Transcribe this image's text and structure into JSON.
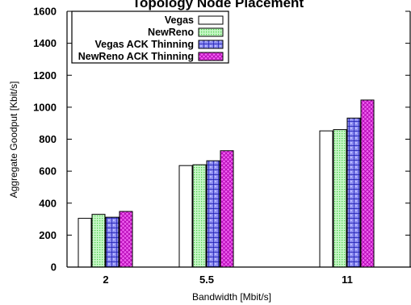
{
  "chart_data": {
    "type": "bar",
    "title": "Topology Node Placement",
    "xlabel": "Bandwidth [Mbit/s]",
    "ylabel": "Aggregate Goodput [Kbit/s]",
    "categories": [
      "2",
      "5.5",
      "11"
    ],
    "ylim": [
      0,
      1600
    ],
    "yticks": [
      0,
      200,
      400,
      600,
      800,
      1000,
      1200,
      1400,
      1600
    ],
    "grid": false,
    "legend_position": "top-left",
    "series": [
      {
        "name": "Vegas",
        "values": [
          305,
          635,
          852
        ],
        "fill": "#ffffff",
        "pattern": "none"
      },
      {
        "name": "NewReno",
        "values": [
          330,
          640,
          860
        ],
        "fill": "#b8f5b8",
        "pattern": "dots"
      },
      {
        "name": "Vegas ACK Thinning",
        "values": [
          312,
          665,
          932
        ],
        "fill": "#7a7ae8",
        "pattern": "grid"
      },
      {
        "name": "NewReno ACK Thinning",
        "values": [
          348,
          728,
          1045
        ],
        "fill": "#ee55ee",
        "pattern": "hatch"
      }
    ]
  }
}
